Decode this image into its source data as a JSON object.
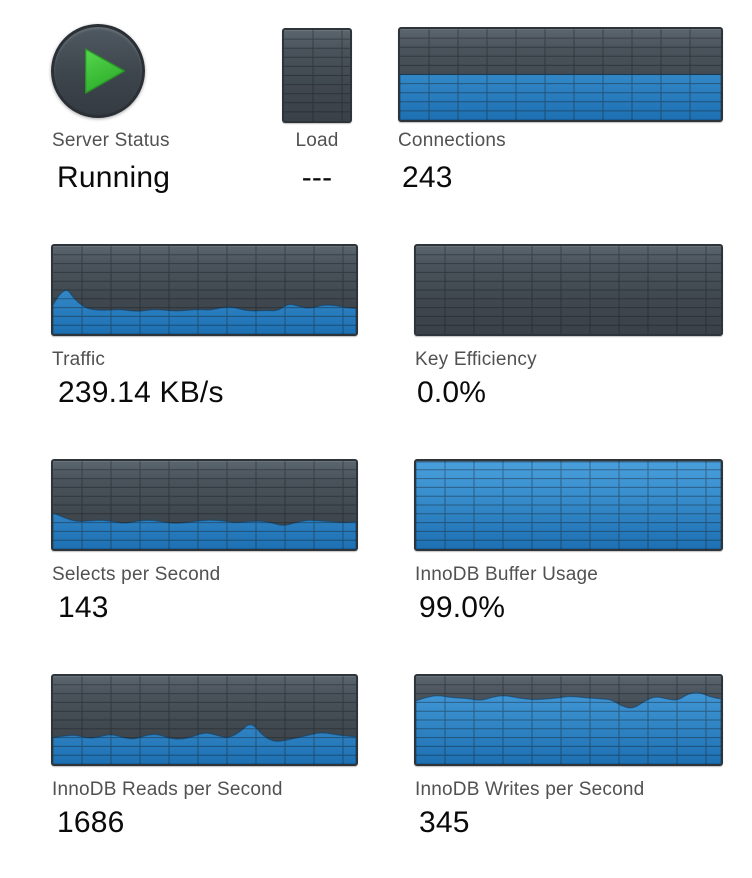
{
  "status": {
    "label": "Server Status",
    "value": "Running",
    "state": "running",
    "icon": "play-icon"
  },
  "colors": {
    "chart_bg_top": "#5b656e",
    "chart_bg_bottom": "#3a4148",
    "chart_border": "#2d343a",
    "grid_line": "rgba(20,26,32,0.42)",
    "area_blue_top": "#4aa0dd",
    "area_blue_bottom": "#1d70b2",
    "area_edge": "rgba(14,62,102,0.55)",
    "status_green": "#3ecb3c",
    "label_gray": "#515151",
    "value_black": "#0a0a0a"
  },
  "chart_data": [
    {
      "id": "load",
      "type": "area",
      "title": "Load",
      "value": "---",
      "fill_pct_series": [],
      "ylim": [
        0,
        100
      ],
      "grid": true
    },
    {
      "id": "connections",
      "type": "area",
      "title": "Connections",
      "value": "243",
      "fill_pct_series": [
        50,
        50,
        50,
        50,
        50,
        50,
        50,
        50,
        50,
        50,
        50
      ],
      "ylim": [
        0,
        100
      ],
      "grid": true
    },
    {
      "id": "traffic",
      "type": "area",
      "title": "Traffic",
      "value": "239.14 KB/s",
      "fill_pct_series": [
        33,
        56,
        38,
        29,
        27,
        27,
        28,
        26,
        26,
        28,
        27,
        26,
        27,
        28,
        27,
        30,
        31,
        27,
        26,
        27,
        26,
        35,
        31,
        29,
        33,
        33,
        30,
        29
      ],
      "ylim": [
        0,
        100
      ],
      "grid": true
    },
    {
      "id": "key_efficiency",
      "type": "area",
      "title": "Key Efficiency",
      "value": "0.0%",
      "fill_pct_series": [
        0,
        0,
        0,
        0,
        0,
        0,
        0,
        0,
        0,
        0,
        0
      ],
      "ylim": [
        0,
        100
      ],
      "grid": true
    },
    {
      "id": "selects_per_second",
      "type": "area",
      "title": "Selects per Second",
      "value": "143",
      "fill_pct_series": [
        41,
        35,
        31,
        32,
        33,
        31,
        29,
        32,
        33,
        31,
        29,
        30,
        32,
        33,
        32,
        30,
        31,
        32,
        30,
        26,
        30,
        33,
        32,
        31,
        30,
        31
      ],
      "ylim": [
        0,
        100
      ],
      "grid": true
    },
    {
      "id": "innodb_buffer_usage",
      "type": "area",
      "title": "InnoDB Buffer Usage",
      "value": "99.0%",
      "fill_pct_series": [
        99,
        99,
        99,
        99,
        99,
        99,
        99,
        99,
        99,
        99,
        99
      ],
      "ylim": [
        0,
        100
      ],
      "grid": true
    },
    {
      "id": "innodb_reads_per_second",
      "type": "area",
      "title": "InnoDB Reads per Second",
      "value": "1686",
      "fill_pct_series": [
        30,
        32,
        33,
        29,
        31,
        34,
        30,
        28,
        33,
        34,
        29,
        28,
        31,
        36,
        33,
        29,
        36,
        48,
        32,
        25,
        27,
        30,
        33,
        36,
        34,
        32,
        31
      ],
      "ylim": [
        0,
        100
      ],
      "grid": true
    },
    {
      "id": "innodb_writes_per_second",
      "type": "area",
      "title": "InnoDB Writes per Second",
      "value": "345",
      "fill_pct_series": [
        72,
        76,
        78,
        76,
        75,
        74,
        72,
        76,
        78,
        76,
        74,
        73,
        74,
        75,
        77,
        76,
        75,
        74,
        73,
        65,
        63,
        72,
        77,
        74,
        72,
        80,
        82,
        76,
        74
      ],
      "ylim": [
        0,
        100
      ],
      "grid": true
    }
  ]
}
